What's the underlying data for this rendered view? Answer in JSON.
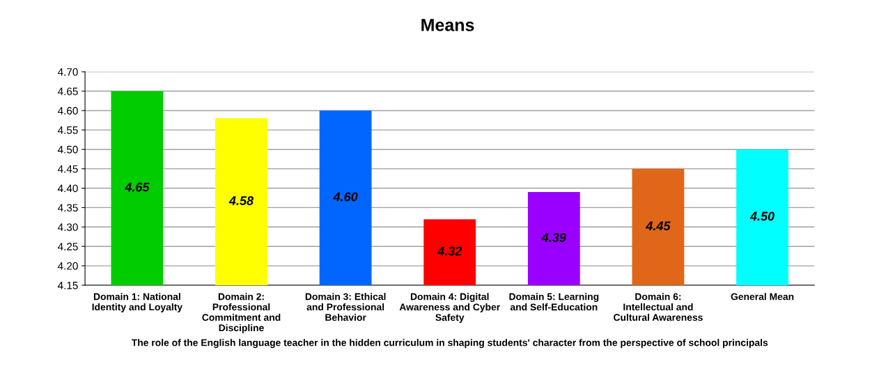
{
  "chart_data": {
    "type": "bar",
    "title": "Means",
    "xlabel": "The role of the English language teacher in the hidden curriculum in shaping students' character from the perspective of school principals",
    "categories": [
      "Domain 1: National\nIdentity and Loyalty",
      "Domain 2:\nProfessional\nCommitment and\nDiscipline",
      "Domain 3: Ethical\nand Professional\nBehavior",
      "Domain 4: Digital\nAwareness and Cyber\nSafety",
      "Domain 5: Learning\nand Self-Education",
      "Domain 6:\nIntellectual and\nCultural Awareness",
      "General Mean"
    ],
    "values": [
      4.65,
      4.58,
      4.6,
      4.32,
      4.39,
      4.45,
      4.5
    ],
    "value_labels": [
      "4.65",
      "4.58",
      "4.60",
      "4.32",
      "4.39",
      "4.45",
      "4.50"
    ],
    "colors": [
      "#00cc00",
      "#ffff00",
      "#0066ff",
      "#ff0000",
      "#9900ff",
      "#e0661a",
      "#00ffff"
    ],
    "ylim": [
      4.15,
      4.7
    ],
    "yticks": [
      4.15,
      {
        "value": 4.2,
        "label": "4.20"
      },
      4.25,
      {
        "value": 4.3,
        "label": "4.30"
      },
      4.35,
      {
        "value": 4.4,
        "label": "4.40"
      },
      4.45,
      {
        "value": 4.5,
        "label": "4.50"
      },
      4.55,
      {
        "value": 4.6,
        "label": "4.60"
      },
      4.65,
      {
        "value": 4.7,
        "label": "4.70"
      }
    ],
    "grid": "y"
  }
}
